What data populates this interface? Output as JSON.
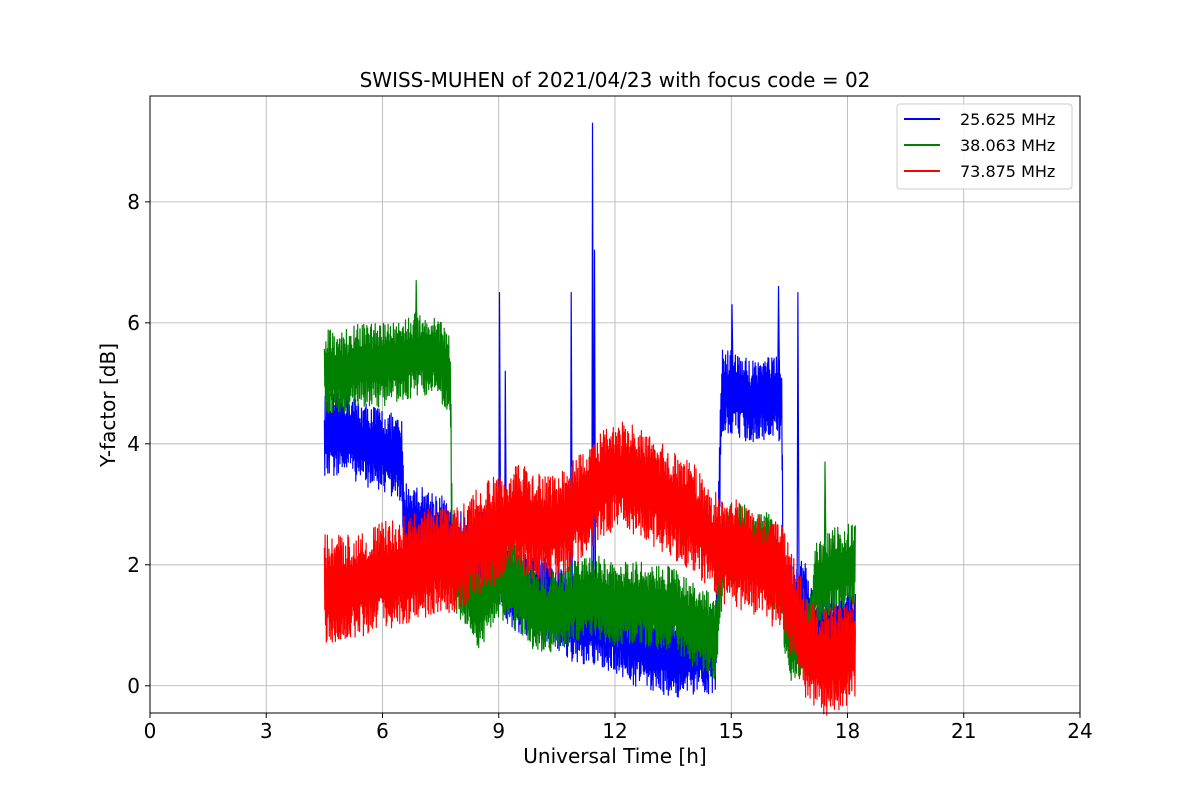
{
  "chart_data": {
    "type": "line",
    "title": "SWISS-MUHEN of 2021/04/23 with focus code = 02",
    "xlabel": "Universal Time [h]",
    "ylabel": "Y-factor [dB]",
    "xlim": [
      0,
      24
    ],
    "ylim": [
      -0.45,
      9.75
    ],
    "xticks": [
      0,
      3,
      6,
      9,
      12,
      15,
      18,
      21,
      24
    ],
    "yticks": [
      0,
      2,
      4,
      6,
      8
    ],
    "grid": true,
    "legend_position": "top-right",
    "series": [
      {
        "name": "25.625 MHz",
        "color": "#0000ff",
        "base": [
          [
            4.5,
            4.1
          ],
          [
            5.0,
            4.2
          ],
          [
            5.5,
            4.0
          ],
          [
            6.0,
            3.9
          ],
          [
            6.5,
            3.7
          ],
          [
            6.55,
            2.7
          ],
          [
            7.0,
            2.6
          ],
          [
            7.5,
            2.5
          ],
          [
            7.8,
            2.2
          ],
          [
            8.5,
            2.2
          ],
          [
            9.0,
            2.0
          ],
          [
            9.5,
            1.5
          ],
          [
            10.0,
            1.5
          ],
          [
            10.5,
            1.3
          ],
          [
            11.0,
            1.0
          ],
          [
            11.5,
            1.0
          ],
          [
            12.0,
            0.9
          ],
          [
            12.5,
            0.7
          ],
          [
            13.0,
            0.6
          ],
          [
            13.5,
            0.5
          ],
          [
            14.0,
            0.5
          ],
          [
            14.6,
            0.6
          ],
          [
            14.75,
            4.9
          ],
          [
            15.2,
            4.8
          ],
          [
            15.5,
            4.7
          ],
          [
            16.0,
            4.8
          ],
          [
            16.3,
            4.7
          ],
          [
            16.35,
            1.3
          ],
          [
            16.9,
            1.4
          ],
          [
            17.0,
            1.0
          ],
          [
            17.5,
            0.9
          ],
          [
            18.2,
            0.9
          ]
        ],
        "amp": 0.7,
        "spikes": [
          [
            9.0,
            6.5
          ],
          [
            9.15,
            5.2
          ],
          [
            10.85,
            6.5
          ],
          [
            11.4,
            9.3
          ],
          [
            11.45,
            7.2
          ],
          [
            15.0,
            6.3
          ],
          [
            16.2,
            6.6
          ],
          [
            16.7,
            6.5
          ]
        ]
      },
      {
        "name": "38.063 MHz",
        "color": "#008000",
        "base": [
          [
            4.5,
            5.2
          ],
          [
            5.0,
            5.2
          ],
          [
            5.5,
            5.3
          ],
          [
            6.0,
            5.3
          ],
          [
            6.5,
            5.4
          ],
          [
            7.0,
            5.5
          ],
          [
            7.5,
            5.4
          ],
          [
            7.75,
            5.1
          ],
          [
            7.8,
            2.0
          ],
          [
            8.0,
            1.8
          ],
          [
            8.5,
            1.3
          ],
          [
            9.0,
            1.8
          ],
          [
            9.5,
            1.6
          ],
          [
            10.0,
            1.2
          ],
          [
            10.5,
            1.2
          ],
          [
            11.0,
            1.4
          ],
          [
            11.5,
            1.5
          ],
          [
            12.0,
            1.3
          ],
          [
            12.5,
            1.4
          ],
          [
            13.0,
            1.3
          ],
          [
            13.5,
            1.3
          ],
          [
            14.0,
            1.0
          ],
          [
            14.6,
            0.8
          ],
          [
            14.8,
            2.3
          ],
          [
            15.5,
            2.3
          ],
          [
            16.0,
            2.2
          ],
          [
            16.3,
            1.6
          ],
          [
            16.5,
            0.7
          ],
          [
            17.0,
            0.8
          ],
          [
            17.2,
            1.7
          ],
          [
            17.6,
            1.9
          ],
          [
            18.2,
            2.0
          ]
        ],
        "amp": 0.7,
        "spikes": [
          [
            6.85,
            6.7
          ],
          [
            17.4,
            3.7
          ]
        ]
      },
      {
        "name": "73.875 MHz",
        "color": "#ff0000",
        "base": [
          [
            4.5,
            1.6
          ],
          [
            5.0,
            1.6
          ],
          [
            5.5,
            1.7
          ],
          [
            6.0,
            1.8
          ],
          [
            6.5,
            1.9
          ],
          [
            7.0,
            2.0
          ],
          [
            7.5,
            2.1
          ],
          [
            8.0,
            2.1
          ],
          [
            8.5,
            2.4
          ],
          [
            9.0,
            2.6
          ],
          [
            9.5,
            2.8
          ],
          [
            10.0,
            2.6
          ],
          [
            10.5,
            2.6
          ],
          [
            11.0,
            2.9
          ],
          [
            11.5,
            3.2
          ],
          [
            12.0,
            3.5
          ],
          [
            12.5,
            3.4
          ],
          [
            13.0,
            3.2
          ],
          [
            13.5,
            3.0
          ],
          [
            14.0,
            2.8
          ],
          [
            14.6,
            2.3
          ],
          [
            15.0,
            2.2
          ],
          [
            15.5,
            2.1
          ],
          [
            16.0,
            1.9
          ],
          [
            16.3,
            1.8
          ],
          [
            16.5,
            1.5
          ],
          [
            17.0,
            0.5
          ],
          [
            17.5,
            0.4
          ],
          [
            18.2,
            0.6
          ]
        ],
        "amp": 0.9,
        "spikes": []
      }
    ]
  }
}
